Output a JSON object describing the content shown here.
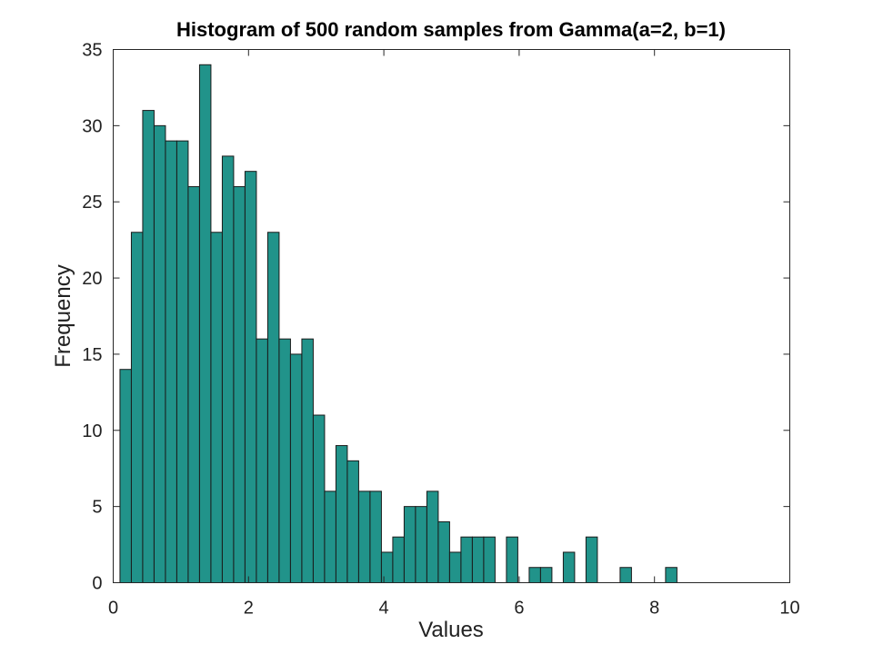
{
  "chart_data": {
    "type": "bar",
    "title": "Histogram of 500 random samples from Gamma(a=2, b=1)",
    "xlabel": "Values",
    "ylabel": "Frequency",
    "xlim": [
      0,
      10
    ],
    "ylim": [
      0,
      35
    ],
    "xticks": [
      0,
      2,
      4,
      6,
      8,
      10
    ],
    "yticks": [
      0,
      5,
      10,
      15,
      20,
      25,
      30,
      35
    ],
    "bin_start": 0.1,
    "bin_width": 0.168,
    "values": [
      14,
      23,
      31,
      30,
      29,
      29,
      26,
      34,
      23,
      28,
      26,
      27,
      16,
      23,
      16,
      15,
      16,
      11,
      6,
      9,
      8,
      6,
      6,
      2,
      3,
      5,
      5,
      6,
      4,
      2,
      3,
      3,
      3,
      0,
      3,
      0,
      1,
      1,
      0,
      2,
      0,
      3,
      0,
      0,
      1,
      0,
      0,
      0,
      1
    ],
    "bar_color": "#21938a",
    "grid": false,
    "legend": "none"
  }
}
